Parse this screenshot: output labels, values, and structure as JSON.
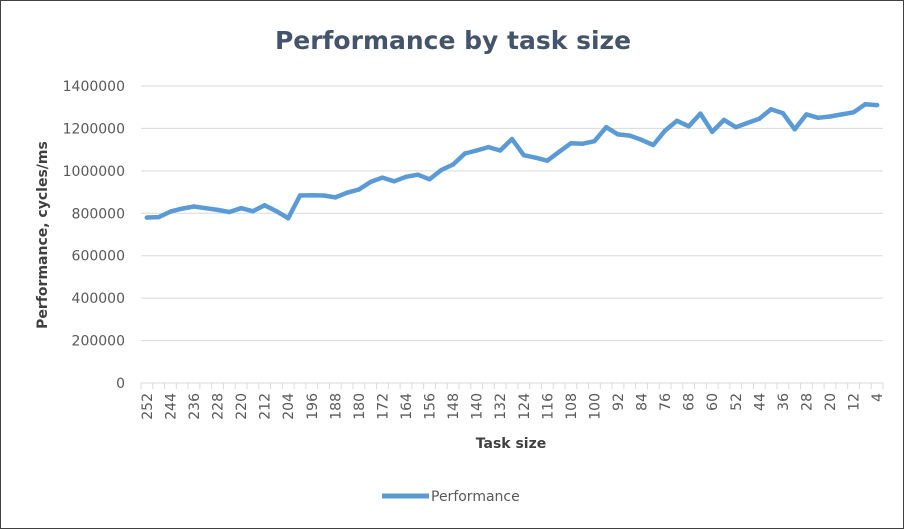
{
  "chart_data": {
    "type": "line",
    "title": "Performance by task size",
    "xlabel": "Task size",
    "ylabel": "Performance, cycles/ms",
    "ylim": [
      0,
      1400000
    ],
    "yticks": [
      0,
      200000,
      400000,
      600000,
      800000,
      1000000,
      1200000,
      1400000
    ],
    "ytick_labels": [
      "0",
      "200000",
      "400000",
      "600000",
      "800000",
      "1000000",
      "1200000",
      "1400000"
    ],
    "grid": true,
    "legend_position": "bottom",
    "x": [
      252,
      248,
      244,
      240,
      236,
      232,
      228,
      224,
      220,
      216,
      212,
      208,
      204,
      200,
      196,
      192,
      188,
      184,
      180,
      176,
      172,
      168,
      164,
      160,
      156,
      152,
      148,
      144,
      140,
      136,
      132,
      128,
      124,
      120,
      116,
      112,
      108,
      104,
      100,
      96,
      92,
      88,
      84,
      80,
      76,
      72,
      68,
      64,
      60,
      56,
      52,
      48,
      44,
      40,
      36,
      32,
      28,
      24,
      20,
      16,
      12,
      8,
      4
    ],
    "x_tick_labels": [
      "252",
      "244",
      "236",
      "228",
      "220",
      "212",
      "204",
      "196",
      "188",
      "180",
      "172",
      "164",
      "156",
      "148",
      "140",
      "132",
      "124",
      "116",
      "108",
      "100",
      "92",
      "84",
      "76",
      "68",
      "60",
      "52",
      "44",
      "36",
      "28",
      "20",
      "12",
      "4"
    ],
    "series": [
      {
        "name": "Performance",
        "color": "#5b9bd5",
        "values": [
          780000,
          782000,
          808000,
          822000,
          832000,
          824000,
          816000,
          806000,
          824000,
          810000,
          838000,
          810000,
          777000,
          884000,
          885000,
          884000,
          875000,
          897000,
          912000,
          948000,
          968000,
          951000,
          972000,
          982000,
          960000,
          1004000,
          1030000,
          1082000,
          1096000,
          1112000,
          1096000,
          1150000,
          1074000,
          1062000,
          1048000,
          1090000,
          1130000,
          1128000,
          1140000,
          1206000,
          1172000,
          1166000,
          1146000,
          1122000,
          1190000,
          1236000,
          1210000,
          1270000,
          1184000,
          1240000,
          1206000,
          1226000,
          1246000,
          1290000,
          1272000,
          1196000,
          1266000,
          1250000,
          1256000,
          1266000,
          1276000,
          1314000,
          1310000
        ]
      }
    ]
  }
}
